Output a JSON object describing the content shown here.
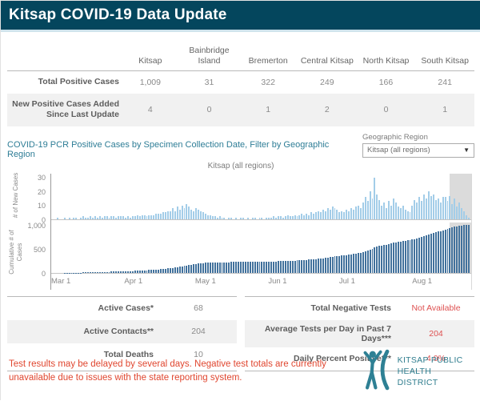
{
  "header": {
    "title": "Kitsap COVID-19 Data Update"
  },
  "region_table": {
    "columns": [
      "Kitsap",
      "Bainbridge Island",
      "Bremerton",
      "Central Kitsap",
      "North Kitsap",
      "South Kitsap"
    ],
    "rows": [
      {
        "label": "Total Positive Cases",
        "values": [
          "1,009",
          "31",
          "322",
          "249",
          "166",
          "241"
        ]
      },
      {
        "label": "New Positive Cases Added Since Last Update",
        "values": [
          "4",
          "0",
          "1",
          "2",
          "0",
          "1"
        ]
      }
    ]
  },
  "chart": {
    "title": "COVID-19 PCR Positive Cases by Specimen Collection Date, Filter by Geographic Region",
    "filter_label": "Geographic Region",
    "filter_value": "Kitsap (all regions)",
    "caret_icon": "▼",
    "subtitle": "Kitsap (all regions)"
  },
  "chart_data": {
    "type": "bar",
    "title": "Kitsap (all regions)",
    "panels": [
      {
        "name": "new-cases",
        "ylabel": "# of New Cases",
        "ticks": [
          0,
          10,
          20,
          30
        ],
        "ylim": [
          0,
          33
        ],
        "color": "#a3cde8"
      },
      {
        "name": "cumulative-cases",
        "ylabel": "Cumulative # of Cases",
        "ticks": [
          0,
          500,
          1000
        ],
        "ylim": [
          0,
          1060
        ],
        "color": "#41719c"
      }
    ],
    "x_axis": {
      "start_label": "Mar 1",
      "months": [
        {
          "label": "Mar 1",
          "day": 0
        },
        {
          "label": "Apr 1",
          "day": 31
        },
        {
          "label": "May 1",
          "day": 61
        },
        {
          "label": "Jun 1",
          "day": 92
        },
        {
          "label": "Jul 1",
          "day": 122
        },
        {
          "label": "Aug 1",
          "day": 153
        }
      ],
      "total_days": 178
    },
    "highlight_recent_days": 9,
    "total_cases": 1009,
    "new_cases": [
      0,
      0,
      1,
      0,
      0,
      1,
      0,
      1,
      0,
      1,
      1,
      0,
      1,
      2,
      1,
      1,
      2,
      1,
      2,
      1,
      2,
      1,
      2,
      2,
      1,
      2,
      2,
      1,
      2,
      2,
      2,
      1,
      2,
      1,
      2,
      2,
      3,
      2,
      3,
      3,
      2,
      3,
      3,
      3,
      4,
      4,
      4,
      5,
      5,
      6,
      6,
      8,
      6,
      9,
      7,
      10,
      8,
      11,
      9,
      7,
      6,
      8,
      7,
      6,
      5,
      4,
      3,
      3,
      2,
      2,
      1,
      2,
      1,
      1,
      0,
      1,
      1,
      0,
      1,
      0,
      1,
      1,
      0,
      1,
      0,
      1,
      1,
      0,
      1,
      1,
      0,
      1,
      1,
      1,
      2,
      1,
      2,
      2,
      1,
      2,
      3,
      2,
      2,
      3,
      2,
      3,
      4,
      3,
      4,
      3,
      5,
      4,
      5,
      6,
      5,
      7,
      6,
      8,
      7,
      9,
      8,
      7,
      5,
      6,
      5,
      7,
      6,
      8,
      7,
      9,
      10,
      8,
      12,
      16,
      13,
      20,
      15,
      30,
      18,
      14,
      10,
      12,
      8,
      13,
      10,
      15,
      12,
      9,
      8,
      10,
      7,
      6,
      5,
      10,
      14,
      12,
      16,
      13,
      18,
      15,
      20,
      17,
      18,
      14,
      15,
      12,
      16,
      16,
      13,
      17,
      11,
      15,
      9,
      12,
      8,
      6,
      3,
      1
    ]
  },
  "stats_left": {
    "rows": [
      {
        "label": "Active Cases*",
        "value": "68"
      },
      {
        "label": "Active Contacts**",
        "value": "204"
      },
      {
        "label": "Total Deaths",
        "value": "10"
      }
    ]
  },
  "stats_right": {
    "rows": [
      {
        "label": "Total Negative Tests",
        "value": "Not Available"
      },
      {
        "label": "Average Tests per Day in Past 7 Days***",
        "value": "204"
      },
      {
        "label": "Daily Percent Positive***",
        "value": "4.0%"
      }
    ],
    "value_color": "#de5050"
  },
  "footer": {
    "note": "Test results may be delayed by several days. Negative test totals  are currently unavailable due to issues with the state reporting system.",
    "logo_line1": "KITSAP PUBLIC",
    "logo_line2": "HEALTH DISTRICT"
  },
  "colors": {
    "header_bg": "#04465d",
    "header_strip": "#cfe3ec",
    "chart_title": "#2e7d96",
    "bar_new": "#a3cde8",
    "bar_cumulative": "#41719c",
    "highlight_band": "#c8c8c8",
    "stats_value_red": "#de5050",
    "footer_red": "#e0462f",
    "logo_teal": "#2e8094"
  }
}
